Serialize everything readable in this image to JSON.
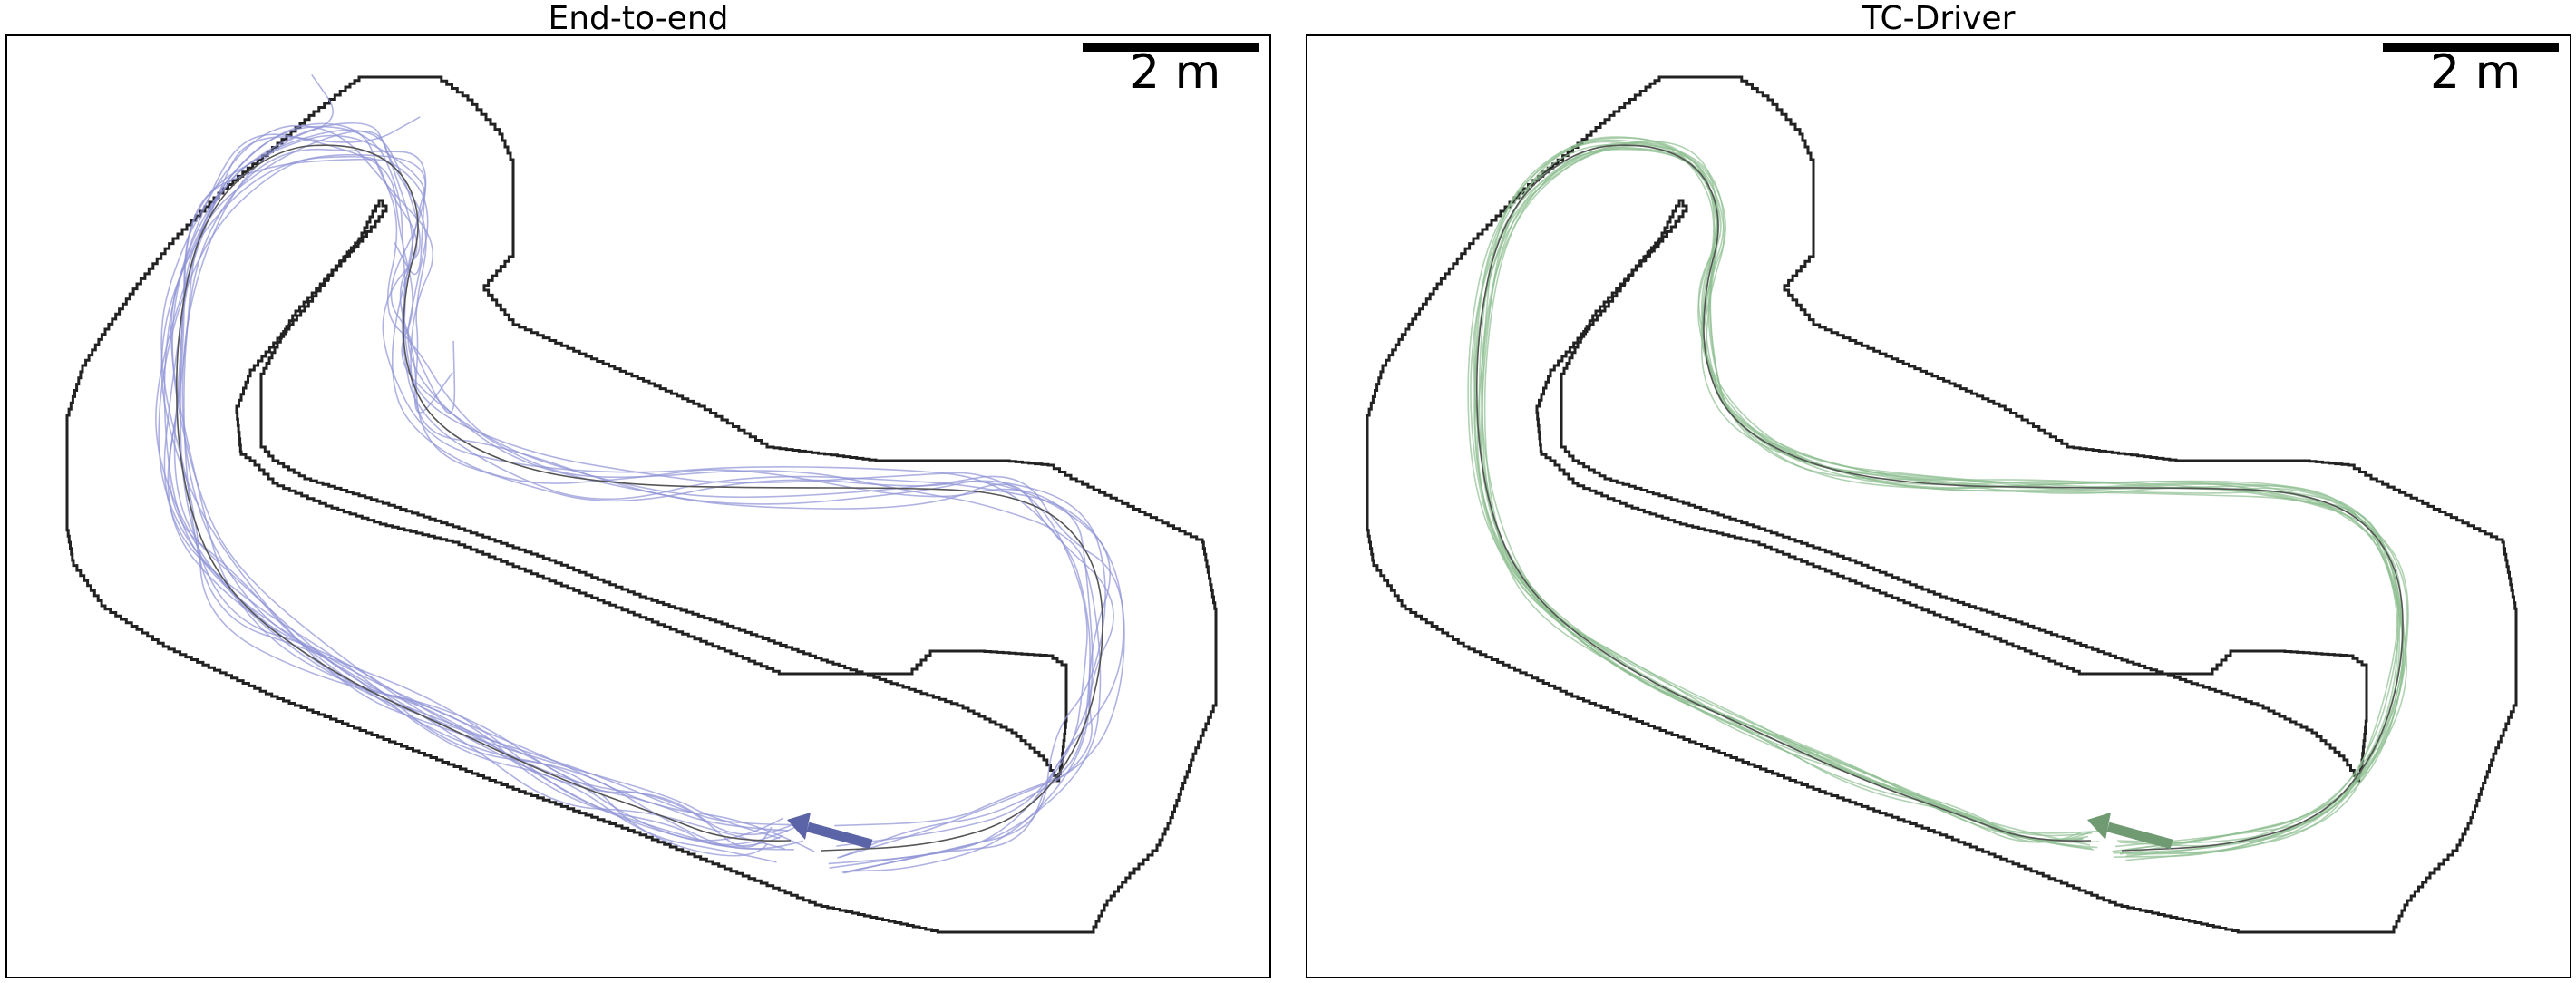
{
  "panels": [
    {
      "title": "End-to-end",
      "scale_label": "2 m",
      "traj_color": "#8f93d6",
      "arrow_color": "#5b64a6",
      "seed": 3,
      "mode": "erratic"
    },
    {
      "title": "TC-Driver",
      "scale_label": "2 m",
      "traj_color": "#8fbf92",
      "arrow_color": "#6f9a72",
      "seed": 7,
      "mode": "smooth"
    }
  ]
}
